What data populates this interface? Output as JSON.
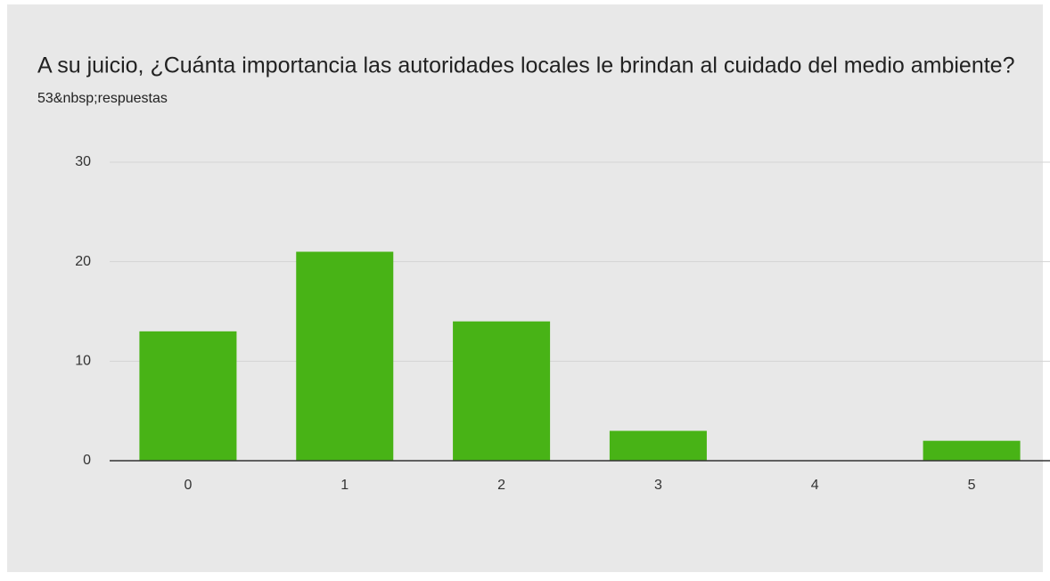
{
  "chart_data": {
    "type": "bar",
    "title": "A su juicio, ¿Cuánta importancia las autoridades locales le brindan al cuidado del medio ambiente?",
    "subtitle": "53&nbsp;respuestas",
    "categories": [
      "0",
      "1",
      "2",
      "3",
      "4",
      "5"
    ],
    "values": [
      13,
      21,
      14,
      3,
      0,
      2
    ],
    "color": "#48b316",
    "ylim": [
      0,
      30
    ],
    "yticks": [
      0,
      10,
      20,
      30
    ],
    "grid": true
  }
}
